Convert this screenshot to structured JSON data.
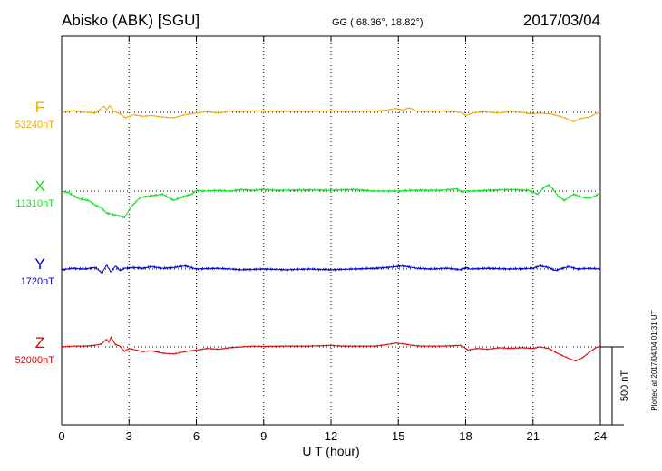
{
  "header": {
    "station": "Abisko (ABK)  [SGU]",
    "coords": "GG ( 68.36°,  18.82°)",
    "date": "2017/03/04"
  },
  "footer": {
    "plotted": "Plotted at 2017/04/04 01:31  UT"
  },
  "chart_data": {
    "type": "line",
    "title": "",
    "xlabel": "U T (hour)",
    "xlim": [
      0,
      24
    ],
    "xticks": [
      "0",
      "3",
      "6",
      "9",
      "12",
      "15",
      "18",
      "21",
      "24"
    ],
    "scale_bar": "500 nT",
    "grid": true,
    "series": [
      {
        "name": "F",
        "baseline": "53240nT",
        "color": "#f0a800",
        "x": [
          0,
          0.5,
          1,
          1.5,
          1.9,
          2.0,
          2.15,
          2.3,
          2.6,
          2.85,
          3.2,
          3.6,
          4.0,
          4.5,
          5.0,
          5.5,
          6.0,
          6.5,
          7.0,
          7.5,
          8.0,
          8.5,
          9.0,
          10,
          11,
          12,
          12.5,
          13,
          14,
          14.5,
          14.9,
          15.2,
          15.5,
          15.8,
          16,
          17,
          17.8,
          18.0,
          18.3,
          18.8,
          19.5,
          20,
          20.5,
          20.9,
          21.3,
          21.8,
          22.2,
          22.5,
          22.8,
          23.1,
          23.5,
          23.8,
          24
        ],
        "values": [
          0,
          10,
          2,
          -5,
          40,
          15,
          45,
          10,
          -10,
          -35,
          -15,
          -25,
          -20,
          -30,
          -35,
          -15,
          -5,
          5,
          -5,
          8,
          5,
          10,
          8,
          6,
          5,
          10,
          5,
          5,
          8,
          15,
          25,
          15,
          30,
          8,
          5,
          8,
          0,
          -20,
          -5,
          5,
          -5,
          8,
          0,
          -10,
          -5,
          -10,
          -25,
          -40,
          -60,
          -40,
          -30,
          -10,
          5
        ]
      },
      {
        "name": "X",
        "baseline": "11310nT",
        "color": "#10e020",
        "x": [
          0,
          0.3,
          0.8,
          1.2,
          1.5,
          1.8,
          2.0,
          2.3,
          2.6,
          2.8,
          3.1,
          3.5,
          4.0,
          4.5,
          5.0,
          5.5,
          5.8,
          6.0,
          6.3,
          7.0,
          7.5,
          8.0,
          8.5,
          9.0,
          9.5,
          10,
          11,
          12,
          12.5,
          13,
          14,
          15,
          15.5,
          16,
          17,
          17.6,
          17.8,
          18.0,
          18.3,
          19,
          20,
          20.8,
          21.2,
          21.5,
          21.7,
          21.9,
          22.1,
          22.4,
          22.8,
          23.2,
          23.5,
          23.8,
          24
        ],
        "values": [
          0,
          -10,
          -50,
          -60,
          -90,
          -110,
          -140,
          -150,
          -160,
          -170,
          -100,
          -40,
          -30,
          -20,
          -60,
          -30,
          -20,
          5,
          0,
          5,
          0,
          10,
          5,
          10,
          5,
          5,
          8,
          5,
          8,
          10,
          0,
          0,
          5,
          5,
          5,
          15,
          -5,
          0,
          0,
          5,
          10,
          5,
          -20,
          25,
          40,
          10,
          -30,
          -60,
          -20,
          -40,
          -45,
          -30,
          -10
        ]
      },
      {
        "name": "Y",
        "baseline": "1720nT",
        "color": "#0000d0",
        "x": [
          0,
          0.5,
          1.0,
          1.5,
          1.8,
          2.0,
          2.2,
          2.4,
          2.6,
          2.8,
          3.2,
          3.6,
          4.0,
          4.5,
          5.0,
          5.5,
          6.0,
          7.0,
          8.0,
          9.0,
          10,
          11,
          12,
          13,
          14,
          14.5,
          15.2,
          15.8,
          16.5,
          17.2,
          17.8,
          18.0,
          18.2,
          19,
          20,
          21,
          21.3,
          21.7,
          22.0,
          22.3,
          22.6,
          23.0,
          23.5,
          24
        ],
        "values": [
          -5,
          5,
          0,
          10,
          -25,
          25,
          -20,
          20,
          -10,
          5,
          10,
          5,
          15,
          5,
          10,
          20,
          0,
          5,
          -5,
          0,
          -5,
          0,
          -5,
          0,
          5,
          10,
          20,
          5,
          0,
          5,
          -5,
          10,
          0,
          5,
          0,
          5,
          20,
          10,
          -10,
          5,
          15,
          0,
          5,
          0
        ]
      },
      {
        "name": "Z",
        "baseline": "52000nT",
        "color": "#e00000",
        "x": [
          0,
          0.5,
          1.0,
          1.5,
          1.8,
          2.0,
          2.1,
          2.2,
          2.4,
          2.6,
          2.8,
          3.0,
          3.3,
          3.6,
          4.0,
          4.5,
          5.0,
          5.5,
          6.0,
          6.5,
          7.0,
          7.5,
          8.0,
          8.5,
          9.0,
          10,
          11,
          12,
          12.5,
          13,
          14,
          14.5,
          14.9,
          15.2,
          15.6,
          16,
          17,
          17.8,
          18.1,
          18.5,
          19,
          19.5,
          20,
          20.5,
          21,
          21.3,
          21.7,
          22.0,
          22.3,
          22.6,
          22.9,
          23.2,
          23.5,
          23.8,
          24
        ],
        "values": [
          0,
          5,
          5,
          10,
          20,
          50,
          30,
          60,
          15,
          5,
          -30,
          -10,
          -20,
          -30,
          -25,
          -40,
          -45,
          -30,
          -20,
          -10,
          -15,
          -5,
          0,
          5,
          3,
          5,
          5,
          10,
          5,
          5,
          5,
          15,
          25,
          20,
          10,
          5,
          5,
          10,
          -20,
          -10,
          -15,
          -5,
          -10,
          -5,
          -10,
          0,
          -10,
          -35,
          -55,
          -75,
          -90,
          -70,
          -35,
          -5,
          5
        ]
      }
    ]
  }
}
